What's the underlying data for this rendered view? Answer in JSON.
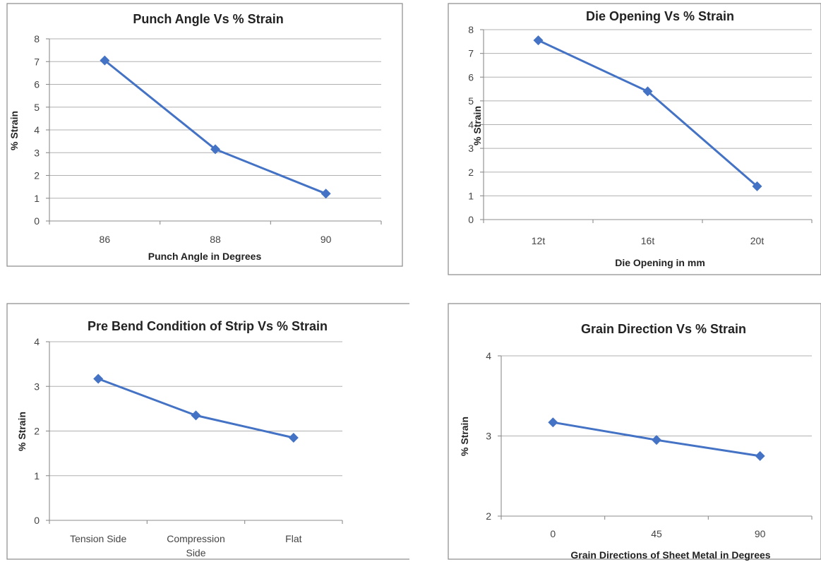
{
  "colors": {
    "series": "#4472c4",
    "grid": "#b0b0b0",
    "frame": "#8a8a8a"
  },
  "chart_data": [
    {
      "type": "line",
      "title": "Punch Angle Vs % Strain",
      "xlabel": "Punch Angle in Degrees",
      "ylabel": "% Strain",
      "categories": [
        "86",
        "88",
        "90"
      ],
      "values": [
        7.05,
        3.15,
        1.2
      ],
      "ylim": [
        0,
        8
      ],
      "yticks": [
        0,
        1,
        2,
        3,
        4,
        5,
        6,
        7,
        8
      ],
      "grid": true,
      "marker": "diamond"
    },
    {
      "type": "line",
      "title": "Die Opening Vs % Strain",
      "xlabel": "Die Opening in mm",
      "ylabel": "% Strain",
      "categories": [
        "12t",
        "16t",
        "20t"
      ],
      "values": [
        7.55,
        5.4,
        1.4
      ],
      "ylim": [
        0,
        8
      ],
      "yticks": [
        0,
        1,
        2,
        3,
        4,
        5,
        6,
        7,
        8
      ],
      "grid": true,
      "marker": "diamond"
    },
    {
      "type": "line",
      "title": "Pre Bend Condition of Strip Vs % Strain",
      "xlabel": "",
      "ylabel": "% Strain",
      "categories": [
        [
          "Tension Side"
        ],
        [
          "Compression",
          "Side"
        ],
        [
          "Flat"
        ]
      ],
      "values": [
        3.17,
        2.35,
        1.85
      ],
      "ylim": [
        0,
        4
      ],
      "yticks": [
        0,
        1,
        2,
        3,
        4
      ],
      "grid": true,
      "marker": "diamond"
    },
    {
      "type": "line",
      "title": "Grain Direction Vs % Strain",
      "xlabel": "Grain Directions of Sheet Metal in Degrees",
      "ylabel": "% Strain",
      "categories": [
        "0",
        "45",
        "90"
      ],
      "values": [
        3.17,
        2.95,
        2.75
      ],
      "ylim": [
        2,
        4
      ],
      "yticks": [
        2,
        3,
        4
      ],
      "grid": true,
      "marker": "diamond"
    }
  ]
}
